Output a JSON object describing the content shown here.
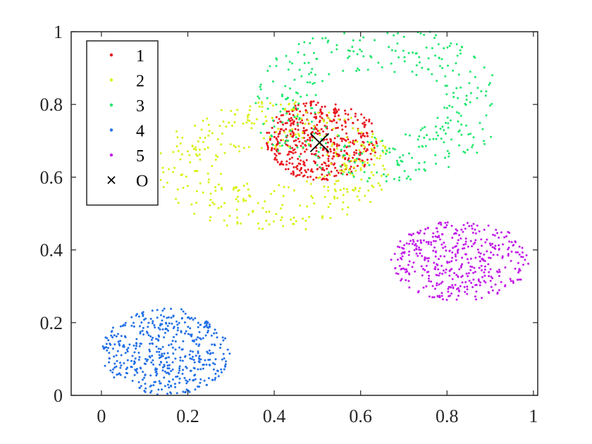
{
  "chart_data": {
    "type": "scatter",
    "title": "",
    "xlabel": "",
    "ylabel": "",
    "xlim": [
      -0.07,
      1.01
    ],
    "ylim": [
      0,
      1
    ],
    "xticks": [
      "0",
      "0.2",
      "0.4",
      "0.6",
      "0.8",
      "1"
    ],
    "yticks": [
      "0",
      "0.2",
      "0.4",
      "0.6",
      "0.8",
      "1"
    ],
    "grid": false,
    "legend_position": "top-left",
    "series": [
      {
        "name": "1",
        "color": "#e8141b",
        "shape": "ellipse-cluster",
        "center": [
          0.51,
          0.7
        ],
        "radius": [
          0.13,
          0.11
        ],
        "count": 480,
        "seed": 11
      },
      {
        "name": "2",
        "color": "#d9f012",
        "shape": "ring-cluster",
        "center": [
          0.4,
          0.63
        ],
        "radius_outer": [
          0.27,
          0.18
        ],
        "radius_inner": [
          0.13,
          0.05
        ],
        "count": 380,
        "seed": 22
      },
      {
        "name": "3",
        "color": "#1de86c",
        "shape": "ring-cluster",
        "center": [
          0.64,
          0.8
        ],
        "radius_outer": [
          0.29,
          0.22
        ],
        "radius_inner": [
          0.15,
          0.09
        ],
        "count": 360,
        "seed": 33
      },
      {
        "name": "4",
        "color": "#2370e6",
        "shape": "ellipse-cluster",
        "center": [
          0.15,
          0.12
        ],
        "radius": [
          0.15,
          0.12
        ],
        "count": 470,
        "seed": 44
      },
      {
        "name": "5",
        "color": "#c21ce8",
        "shape": "ellipse-cluster",
        "center": [
          0.83,
          0.37
        ],
        "radius": [
          0.16,
          0.11
        ],
        "count": 420,
        "seed": 55
      }
    ],
    "markers": [
      {
        "name": "O",
        "x": 0.505,
        "y": 0.695,
        "symbol": "x",
        "color": "#000000"
      }
    ]
  }
}
